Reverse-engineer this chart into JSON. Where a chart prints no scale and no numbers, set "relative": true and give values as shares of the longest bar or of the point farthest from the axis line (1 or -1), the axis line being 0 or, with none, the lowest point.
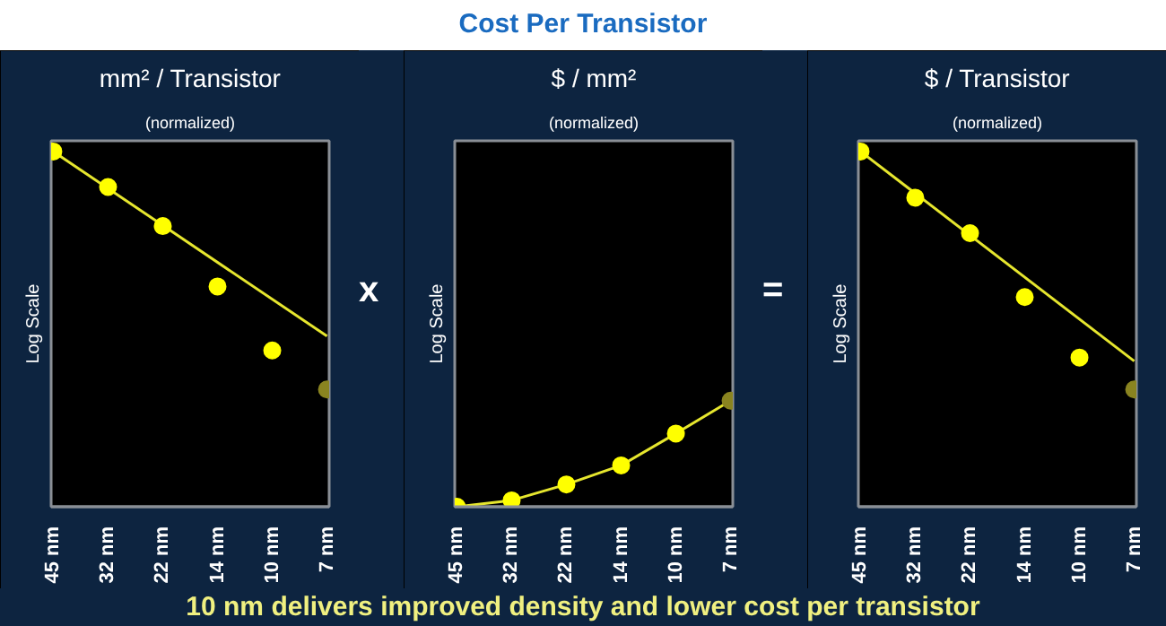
{
  "chart_data": [
    {
      "type": "other",
      "title": "Cost Per Transistor",
      "annotations": [
        "10 nm delivers improved density and lower cost per transistor"
      ]
    },
    {
      "type": "line",
      "title": "mm² / Transistor",
      "subtitle": "(normalized)",
      "ylabel": "Log Scale",
      "relative": true,
      "marker": "circle",
      "categories": [
        "45 nm",
        "32 nm",
        "22 nm",
        "14 nm",
        "10 nm",
        "7 nm"
      ],
      "series": [
        {
          "type": "line",
          "marker": "none",
          "color": "#e6e62e",
          "values": [
            1.0,
            null,
            null,
            null,
            null,
            0.48
          ]
        },
        {
          "type": "scatter",
          "color": "#ffff00",
          "values": [
            1.0,
            0.9,
            0.79,
            0.62,
            0.44,
            null
          ]
        },
        {
          "type": "scatter",
          "color": "#8a8420",
          "values": [
            null,
            null,
            null,
            null,
            null,
            0.33
          ]
        }
      ]
    },
    {
      "type": "line",
      "title": "$ / mm²",
      "subtitle": "(normalized)",
      "ylabel": "Log Scale",
      "relative": true,
      "marker": "circle",
      "annotations": [
        "x"
      ],
      "categories": [
        "45 nm",
        "32 nm",
        "22 nm",
        "14 nm",
        "10 nm",
        "7 nm"
      ],
      "series": [
        {
          "type": "line",
          "marker": "none",
          "color": "#e6e62e",
          "values": [
            0.0,
            0.06,
            0.21,
            0.39,
            0.69,
            1.0
          ]
        },
        {
          "type": "scatter",
          "color": "#ffff00",
          "values": [
            0.0,
            0.06,
            0.21,
            0.39,
            0.69,
            null
          ]
        },
        {
          "type": "scatter",
          "color": "#8a8420",
          "values": [
            null,
            null,
            null,
            null,
            null,
            1.0
          ]
        }
      ]
    },
    {
      "type": "line",
      "title": "$ / Transistor",
      "subtitle": "(normalized)",
      "ylabel": "Log Scale",
      "relative": true,
      "marker": "circle",
      "annotations": [
        "="
      ],
      "categories": [
        "45 nm",
        "32 nm",
        "22 nm",
        "14 nm",
        "10 nm",
        "7 nm"
      ],
      "series": [
        {
          "type": "line",
          "marker": "none",
          "color": "#e6e62e",
          "values": [
            1.0,
            null,
            null,
            null,
            null,
            0.41
          ]
        },
        {
          "type": "scatter",
          "color": "#ffff00",
          "values": [
            1.0,
            0.87,
            0.77,
            0.59,
            0.42,
            null
          ]
        },
        {
          "type": "scatter",
          "color": "#8a8420",
          "values": [
            null,
            null,
            null,
            null,
            null,
            0.33
          ]
        }
      ]
    }
  ]
}
